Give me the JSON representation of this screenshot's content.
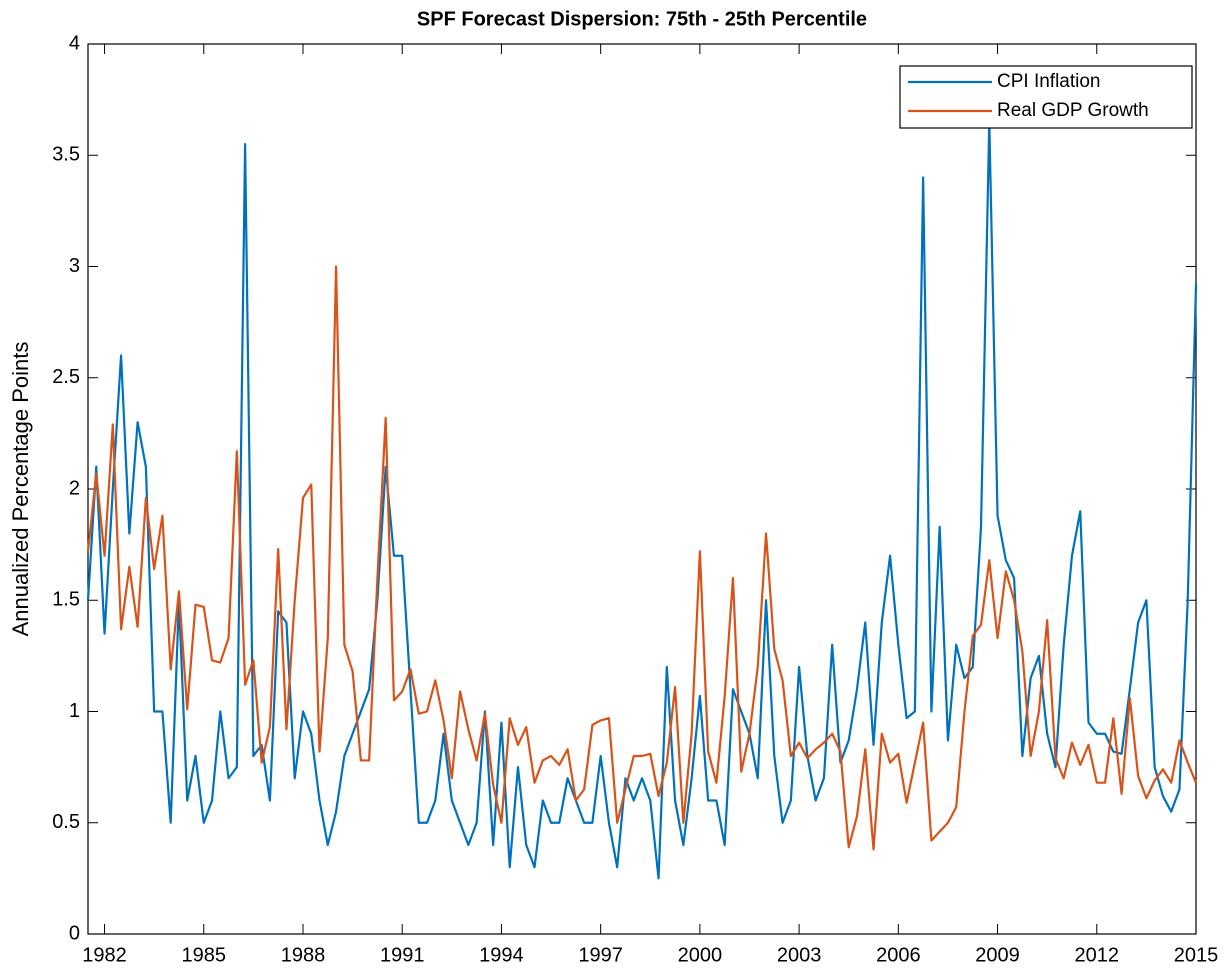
{
  "chart_data": {
    "type": "line",
    "title": "SPF Forecast Dispersion: 75th - 25th Percentile",
    "y_label": "Annualized Percentage Points",
    "xlim": [
      1981.5,
      2015
    ],
    "xticks": [
      1982,
      1985,
      1988,
      1991,
      1994,
      1997,
      2000,
      2003,
      2006,
      2009,
      2012,
      2015
    ],
    "ylim": [
      0,
      4
    ],
    "yticks": [
      0,
      0.5,
      1,
      1.5,
      2,
      2.5,
      3,
      3.5,
      4
    ],
    "legend_position": "upper-right",
    "x": [
      1981.5,
      1981.75,
      1982,
      1982.25,
      1982.5,
      1982.75,
      1983,
      1983.25,
      1983.5,
      1983.75,
      1984,
      1984.25,
      1984.5,
      1984.75,
      1985,
      1985.25,
      1985.5,
      1985.75,
      1986,
      1986.25,
      1986.5,
      1986.75,
      1987,
      1987.25,
      1987.5,
      1987.75,
      1988,
      1988.25,
      1988.5,
      1988.75,
      1989,
      1989.25,
      1989.5,
      1989.75,
      1990,
      1990.25,
      1990.5,
      1990.75,
      1991,
      1991.25,
      1991.5,
      1991.75,
      1992,
      1992.25,
      1992.5,
      1992.75,
      1993,
      1993.25,
      1993.5,
      1993.75,
      1994,
      1994.25,
      1994.5,
      1994.75,
      1995,
      1995.25,
      1995.5,
      1995.75,
      1996,
      1996.25,
      1996.5,
      1996.75,
      1997,
      1997.25,
      1997.5,
      1997.75,
      1998,
      1998.25,
      1998.5,
      1998.75,
      1999,
      1999.25,
      1999.5,
      1999.75,
      2000,
      2000.25,
      2000.5,
      2000.75,
      2001,
      2001.25,
      2001.5,
      2001.75,
      2002,
      2002.25,
      2002.5,
      2002.75,
      2003,
      2003.25,
      2003.5,
      2003.75,
      2004,
      2004.25,
      2004.5,
      2004.75,
      2005,
      2005.25,
      2005.5,
      2005.75,
      2006,
      2006.25,
      2006.5,
      2006.75,
      2007,
      2007.25,
      2007.5,
      2007.75,
      2008,
      2008.25,
      2008.5,
      2008.75,
      2009,
      2009.25,
      2009.5,
      2009.75,
      2010,
      2010.25,
      2010.5,
      2010.75,
      2011,
      2011.25,
      2011.5,
      2011.75,
      2012,
      2012.25,
      2012.5,
      2012.75,
      2013,
      2013.25,
      2013.5,
      2013.75,
      2014,
      2014.25,
      2014.5,
      2014.75,
      2015
    ],
    "series": [
      {
        "name": "CPI Inflation",
        "color": "#0072BD",
        "values": [
          1.5,
          2.1,
          1.35,
          2.0,
          2.6,
          1.8,
          2.3,
          2.1,
          1.0,
          1.0,
          0.5,
          1.5,
          0.6,
          0.8,
          0.5,
          0.6,
          1.0,
          0.7,
          0.75,
          3.55,
          0.8,
          0.85,
          0.6,
          1.45,
          1.4,
          0.7,
          1.0,
          0.9,
          0.6,
          0.4,
          0.55,
          0.8,
          0.9,
          1.0,
          1.1,
          1.5,
          2.1,
          1.7,
          1.7,
          1.1,
          0.5,
          0.5,
          0.6,
          0.9,
          0.6,
          0.5,
          0.4,
          0.5,
          1.0,
          0.4,
          0.95,
          0.3,
          0.75,
          0.4,
          0.3,
          0.6,
          0.5,
          0.5,
          0.7,
          0.6,
          0.5,
          0.5,
          0.8,
          0.5,
          0.3,
          0.7,
          0.6,
          0.7,
          0.6,
          0.25,
          1.2,
          0.6,
          0.4,
          0.7,
          1.07,
          0.6,
          0.6,
          0.4,
          1.1,
          1.0,
          0.9,
          0.7,
          1.5,
          0.8,
          0.5,
          0.6,
          1.2,
          0.8,
          0.6,
          0.7,
          1.3,
          0.77,
          0.87,
          1.1,
          1.4,
          0.85,
          1.4,
          1.7,
          1.3,
          0.97,
          1.0,
          3.4,
          1.0,
          1.83,
          0.87,
          1.3,
          1.15,
          1.2,
          1.83,
          3.65,
          1.88,
          1.68,
          1.6,
          0.8,
          1.15,
          1.25,
          0.9,
          0.75,
          1.3,
          1.7,
          1.9,
          0.95,
          0.9,
          0.9,
          0.82,
          0.81,
          1.1,
          1.4,
          1.5,
          0.75,
          0.62,
          0.55,
          0.65,
          1.5,
          2.92
        ]
      },
      {
        "name": "Real GDP Growth",
        "color": "#D95319",
        "values": [
          1.72,
          2.07,
          1.7,
          2.29,
          1.37,
          1.65,
          1.38,
          1.96,
          1.64,
          1.88,
          1.19,
          1.54,
          1.01,
          1.48,
          1.47,
          1.23,
          1.22,
          1.33,
          2.17,
          1.12,
          1.23,
          0.77,
          0.93,
          1.73,
          0.92,
          1.5,
          1.96,
          2.02,
          0.82,
          1.33,
          3.0,
          1.3,
          1.18,
          0.78,
          0.78,
          1.6,
          2.32,
          1.05,
          1.09,
          1.19,
          0.99,
          1.0,
          1.14,
          0.96,
          0.7,
          1.09,
          0.92,
          0.78,
          0.99,
          0.67,
          0.5,
          0.97,
          0.85,
          0.93,
          0.68,
          0.78,
          0.8,
          0.76,
          0.83,
          0.6,
          0.65,
          0.94,
          0.96,
          0.97,
          0.5,
          0.65,
          0.8,
          0.8,
          0.81,
          0.62,
          0.77,
          1.11,
          0.5,
          0.9,
          1.72,
          0.82,
          0.68,
          1.07,
          1.6,
          0.73,
          0.9,
          1.2,
          1.8,
          1.28,
          1.14,
          0.8,
          0.86,
          0.79,
          0.83,
          0.86,
          0.9,
          0.82,
          0.39,
          0.53,
          0.83,
          0.38,
          0.9,
          0.77,
          0.81,
          0.59,
          0.77,
          0.95,
          0.42,
          0.46,
          0.5,
          0.57,
          1.0,
          1.34,
          1.39,
          1.68,
          1.33,
          1.63,
          1.5,
          1.27,
          0.8,
          1.0,
          1.41,
          0.79,
          0.7,
          0.86,
          0.76,
          0.85,
          0.68,
          0.68,
          0.97,
          0.63,
          1.06,
          0.71,
          0.61,
          0.69,
          0.74,
          0.68,
          0.87,
          0.77,
          0.68
        ]
      }
    ]
  }
}
